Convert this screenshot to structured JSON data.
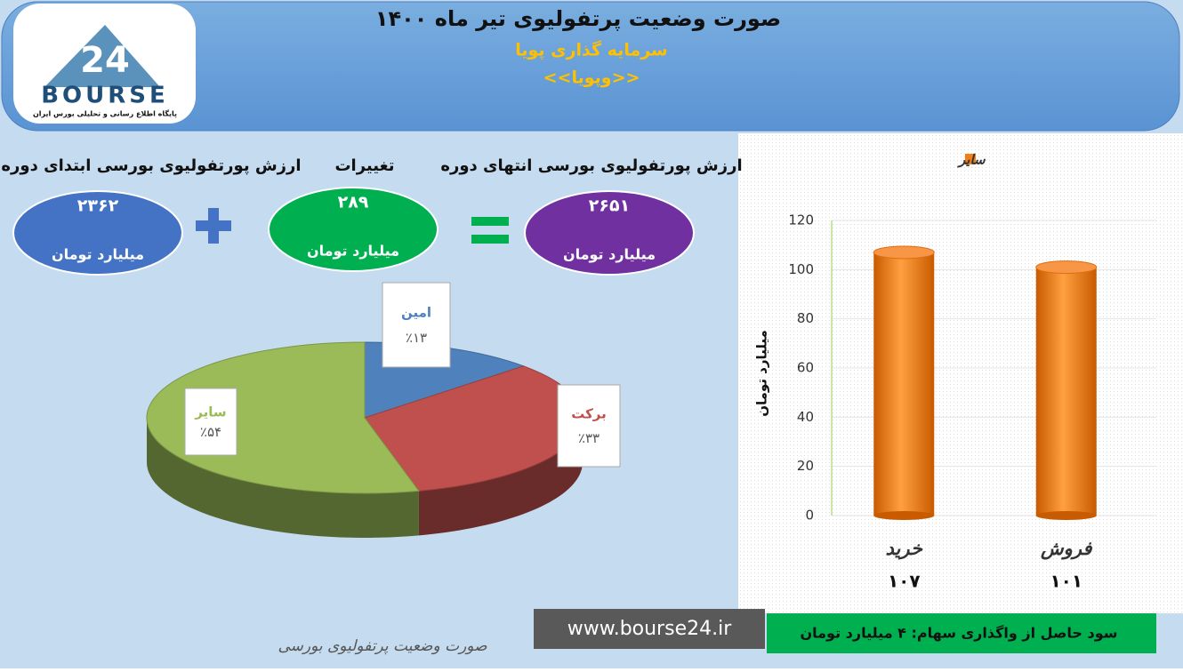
{
  "header": {
    "title": "صورت وضعیت پرتفولیوی تیر ماه ۱۴۰۰",
    "subtitle": "سرمایه گذاری پویا",
    "symbol": "<<وپویا>>"
  },
  "logo": {
    "number": "24",
    "name": "BOURSE",
    "tagline": "پایگاه اطلاع رسانی و تحلیلی بورس ایران"
  },
  "summary": [
    {
      "label": "ارزش پورتفولیوی بورسی ابتدای دوره",
      "value": "۲۳۶۲",
      "unit": "میلیارد تومان",
      "color": "#4472c4"
    },
    {
      "label": "تغییرات",
      "value": "۲۸۹",
      "unit": "میلیارد تومان",
      "color": "#00b050"
    },
    {
      "label": "ارزش پورتفولیوی بورسی انتهای دوره",
      "value": "۲۶۵۱",
      "unit": "میلیارد تومان",
      "color": "#7030a0"
    }
  ],
  "chart_data": [
    {
      "type": "pie",
      "categories": [
        "امین",
        "برکت",
        "سایر"
      ],
      "values": [
        13,
        33,
        54
      ],
      "value_labels": [
        "٪۱۳",
        "٪۳۳",
        "٪۵۴"
      ],
      "colors": [
        "#4f81bd",
        "#c0504d",
        "#9bbb59"
      ]
    },
    {
      "type": "bar",
      "categories": [
        "خرید",
        "فروش"
      ],
      "series": [
        {
          "name": "سایر",
          "color": "#f07f1a",
          "values": [
            107,
            101
          ],
          "value_labels": [
            "۱۰۷",
            "۱۰۱"
          ]
        }
      ],
      "y_label": "میلیارد تومان",
      "ylim": [
        0,
        120
      ],
      "yticks": [
        0,
        20,
        40,
        60,
        80,
        100,
        120
      ],
      "grid": true
    }
  ],
  "footer": {
    "profit": "سود حاصل از واگذاری سهام: ۴ میلیارد تومان",
    "url": "www.bourse24.ir",
    "caption": "صورت وضعیت پرتفولیوی بورسی"
  }
}
